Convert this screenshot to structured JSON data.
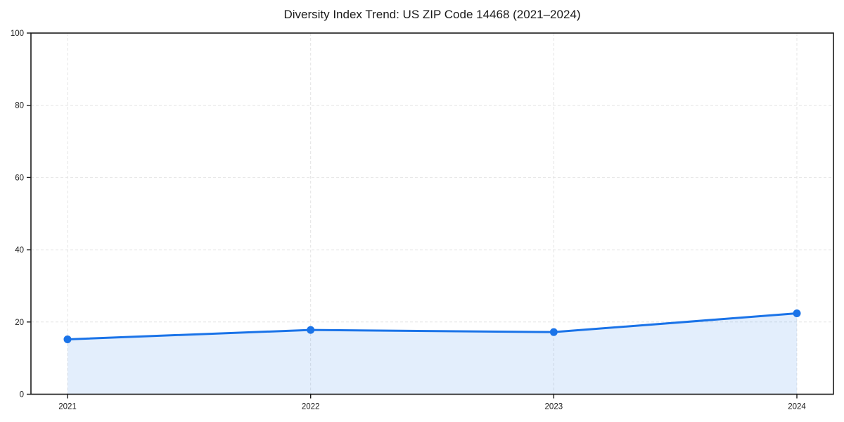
{
  "title": "Diversity Index Trend: US ZIP Code 14468 (2021–2024)",
  "chart_data": {
    "type": "line",
    "title": "Diversity Index Trend: US ZIP Code 14468 (2021–2024)",
    "categories": [
      "2021",
      "2022",
      "2023",
      "2024"
    ],
    "series": [
      {
        "name": "Diversity Index",
        "values": [
          15.2,
          17.8,
          17.2,
          22.4
        ]
      }
    ],
    "xlabel": "",
    "ylabel": "",
    "ylim": [
      0,
      100
    ],
    "yticks": [
      0,
      20,
      40,
      60,
      80,
      100
    ],
    "grid": true,
    "grid_style": "dashed",
    "legend": "none",
    "area_fill": true,
    "colors": {
      "line": "#1a73e8",
      "marker": "#1a73e8",
      "fill": "rgba(26,115,232,0.12)",
      "grid": "#e4e4e4",
      "spine": "#1a1a1a",
      "tick_label": "#1a1a1a",
      "background": "#ffffff"
    }
  }
}
